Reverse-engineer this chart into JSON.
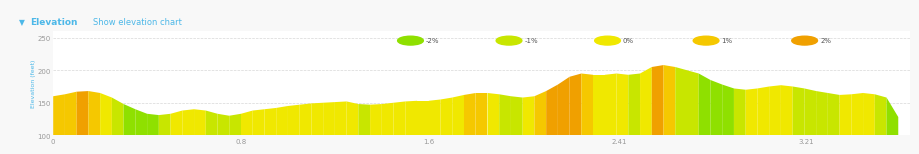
{
  "title": "Elevation",
  "subtitle": "Show elevation chart",
  "ylabel": "Elevation (feet)",
  "background_color": "#f8f8f8",
  "plot_bg": "#ffffff",
  "ylim": [
    100,
    260
  ],
  "xlim": [
    0,
    3.65
  ],
  "yticks": [
    100,
    150,
    200,
    250
  ],
  "xticks": [
    0,
    0.8,
    1.6,
    2.41,
    3.21
  ],
  "elevation_x": [
    0.0,
    0.05,
    0.1,
    0.15,
    0.2,
    0.25,
    0.3,
    0.35,
    0.4,
    0.45,
    0.5,
    0.55,
    0.6,
    0.65,
    0.7,
    0.75,
    0.8,
    0.85,
    0.9,
    0.95,
    1.0,
    1.05,
    1.1,
    1.15,
    1.2,
    1.25,
    1.3,
    1.35,
    1.4,
    1.45,
    1.5,
    1.55,
    1.6,
    1.65,
    1.7,
    1.75,
    1.8,
    1.85,
    1.9,
    1.95,
    2.0,
    2.05,
    2.1,
    2.15,
    2.2,
    2.25,
    2.3,
    2.35,
    2.4,
    2.45,
    2.5,
    2.55,
    2.6,
    2.65,
    2.7,
    2.75,
    2.8,
    2.85,
    2.9,
    2.95,
    3.0,
    3.05,
    3.1,
    3.15,
    3.2,
    3.25,
    3.3,
    3.35,
    3.4,
    3.45,
    3.5,
    3.55,
    3.6
  ],
  "elevation_y": [
    160,
    163,
    167,
    168,
    165,
    158,
    148,
    140,
    133,
    131,
    133,
    138,
    140,
    138,
    133,
    130,
    133,
    138,
    140,
    142,
    145,
    147,
    149,
    150,
    151,
    152,
    148,
    147,
    148,
    150,
    152,
    153,
    153,
    155,
    158,
    162,
    165,
    165,
    163,
    160,
    158,
    160,
    168,
    178,
    190,
    195,
    193,
    193,
    195,
    193,
    195,
    205,
    208,
    205,
    200,
    195,
    185,
    178,
    172,
    170,
    172,
    175,
    177,
    175,
    172,
    168,
    165,
    162,
    163,
    165,
    163,
    158,
    128
  ],
  "gradient_vals": [
    1,
    1,
    2,
    1,
    0,
    -1,
    -2,
    -2,
    -2,
    -1,
    0,
    0,
    0,
    -1,
    -1,
    -1,
    0,
    0,
    0,
    0,
    0,
    0,
    0,
    0,
    0,
    0,
    -1,
    0,
    0,
    0,
    0,
    0,
    0,
    0,
    0,
    1,
    1,
    0,
    -1,
    -1,
    0,
    1,
    2,
    2,
    2,
    1,
    0,
    0,
    0,
    -1,
    0,
    2,
    1,
    -1,
    -1,
    -2,
    -2,
    -2,
    -1,
    0,
    0,
    0,
    0,
    -1,
    -1,
    -1,
    -1,
    0,
    0,
    0,
    -1,
    -2,
    -2
  ],
  "legend_items": [
    {
      "label": "-2%",
      "color": "#8fe000"
    },
    {
      "label": "-1%",
      "color": "#c8e600"
    },
    {
      "label": "0%",
      "color": "#f0e800"
    },
    {
      "label": "1%",
      "color": "#f5c800"
    },
    {
      "label": "2%",
      "color": "#f0a000"
    }
  ],
  "header_bg": "#efefef",
  "chart_bg": "#ffffff",
  "grid_color": "#d8d8d8",
  "text_color_blue": "#4db8e8",
  "tick_color": "#999999",
  "base_elev": 100
}
